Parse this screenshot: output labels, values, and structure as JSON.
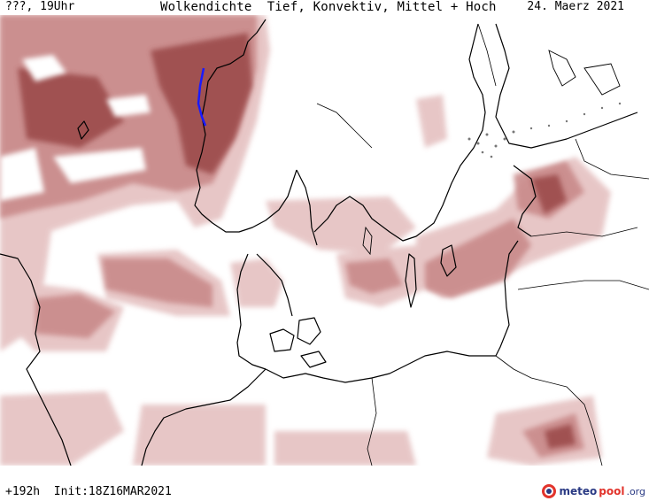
{
  "header": {
    "left": "???, 19Uhr",
    "title": "Wolkendichte  Tief, Konvektiv, Mittel + Hoch",
    "date": "24. Maerz 2021"
  },
  "footer": {
    "run": "+192h  Init:18Z16MAR2021"
  },
  "brand": {
    "part1": "meteo",
    "part2": "pool",
    "part3": ".org"
  },
  "colors": {
    "cloud_light": "#e6c4c4",
    "cloud_mid": "#c98a8a",
    "cloud_dark": "#9c4b4b",
    "coastline": "#000000",
    "precip_blue": "#1a1aff"
  }
}
